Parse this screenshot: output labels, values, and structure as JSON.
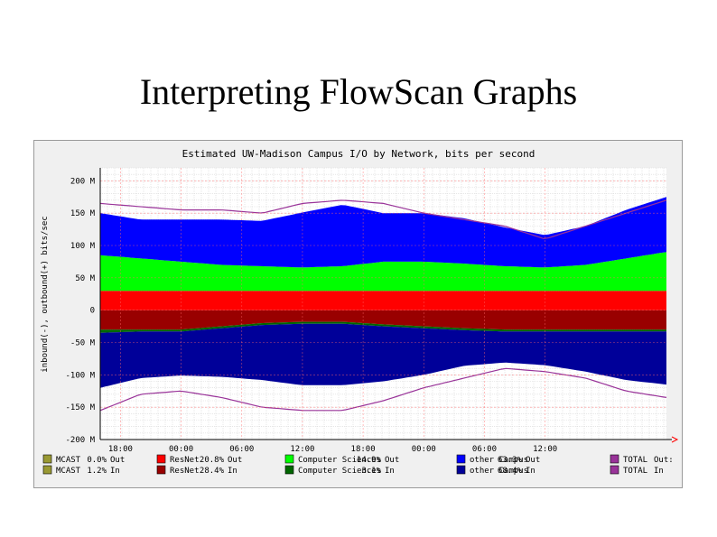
{
  "slide": {
    "title": "Interpreting FlowScan Graphs"
  },
  "chart_data": {
    "type": "area",
    "title": "Estimated UW-Madison Campus I/O by Network, bits per second",
    "ylabel": "inbound(-), outbound(+) bits/sec",
    "xlabel": "",
    "ylim": [
      -200000000,
      220000000
    ],
    "yticks": [
      {
        "value": 200000000,
        "label": "200 M"
      },
      {
        "value": 150000000,
        "label": "150 M"
      },
      {
        "value": 100000000,
        "label": "100 M"
      },
      {
        "value": 50000000,
        "label": "50 M"
      },
      {
        "value": 0,
        "label": "0"
      },
      {
        "value": -50000000,
        "label": "-50 M"
      },
      {
        "value": -100000000,
        "label": "-100 M"
      },
      {
        "value": -150000000,
        "label": "-150 M"
      },
      {
        "value": -200000000,
        "label": "-200 M"
      }
    ],
    "xticks": [
      "18:00",
      "00:00",
      "06:00",
      "12:00",
      "18:00",
      "00:00",
      "06:00",
      "12:00"
    ],
    "grid": true,
    "legend_position": "bottom",
    "x_hours": [
      0,
      4,
      8,
      12,
      16,
      20,
      24,
      28,
      32,
      36,
      40,
      44,
      48,
      52,
      56
    ],
    "series": [
      {
        "name": "ResNet",
        "direction": "out",
        "color": "#ff0000",
        "values_mbps": [
          30,
          30,
          30,
          30,
          30,
          30,
          30,
          30,
          30,
          30,
          30,
          30,
          30,
          30,
          30
        ]
      },
      {
        "name": "Computer Sciences",
        "direction": "out",
        "color": "#00ff00",
        "values_mbps": [
          55,
          50,
          45,
          40,
          38,
          36,
          38,
          45,
          45,
          42,
          38,
          36,
          40,
          50,
          60
        ]
      },
      {
        "name": "other Campus",
        "direction": "out",
        "color": "#0000ff",
        "values_mbps": [
          65,
          60,
          65,
          70,
          70,
          85,
          95,
          75,
          75,
          70,
          60,
          50,
          60,
          75,
          85
        ]
      },
      {
        "name": "ResNet",
        "direction": "in",
        "color": "#990000",
        "values_mbps": [
          -30,
          -30,
          -30,
          -25,
          -20,
          -18,
          -18,
          -22,
          -25,
          -28,
          -30,
          -30,
          -30,
          -30,
          -30
        ]
      },
      {
        "name": "Computer Sciences",
        "direction": "in",
        "color": "#006600",
        "values_mbps": [
          -5,
          -3,
          -3,
          -3,
          -3,
          -3,
          -3,
          -3,
          -3,
          -3,
          -3,
          -3,
          -3,
          -3,
          -3
        ]
      },
      {
        "name": "other Campus",
        "direction": "in",
        "color": "#000099",
        "values_mbps": [
          -85,
          -72,
          -68,
          -75,
          -85,
          -95,
          -95,
          -85,
          -72,
          -55,
          -48,
          -52,
          -62,
          -75,
          -82
        ]
      }
    ],
    "total_out_mbps": [
      165,
      160,
      155,
      155,
      150,
      165,
      170,
      165,
      150,
      140,
      130,
      110,
      130,
      150,
      170
    ],
    "total_in_mbps": [
      -155,
      -130,
      -125,
      -135,
      -150,
      -155,
      -155,
      -140,
      -120,
      -105,
      -90,
      -95,
      -105,
      -125,
      -135
    ],
    "legend": [
      {
        "swatch": "#999933",
        "name": "MCAST",
        "pct": "0.0%",
        "dir": "Out"
      },
      {
        "swatch": "#999933",
        "name": "MCAST",
        "pct": "1.2%",
        "dir": "In"
      },
      {
        "swatch": "#ff0000",
        "name": "ResNet",
        "pct": "20.8%",
        "dir": "Out"
      },
      {
        "swatch": "#990000",
        "name": "ResNet",
        "pct": "28.4%",
        "dir": "In"
      },
      {
        "swatch": "#00ff00",
        "name": "Computer Sciences",
        "pct": "14.9%",
        "dir": "Out"
      },
      {
        "swatch": "#006600",
        "name": "Computer Sciences",
        "pct": "3.1%",
        "dir": "In"
      },
      {
        "swatch": "#0000ff",
        "name": "other Campus",
        "pct": "63.3%",
        "dir": "Out"
      },
      {
        "swatch": "#000099",
        "name": "other Campus",
        "pct": "68.4%",
        "dir": "In"
      },
      {
        "swatch": "#993399",
        "name": "TOTAL",
        "pct": "",
        "dir": "Out:"
      },
      {
        "swatch": "#993399",
        "name": "TOTAL",
        "pct": "",
        "dir": "In"
      }
    ]
  }
}
